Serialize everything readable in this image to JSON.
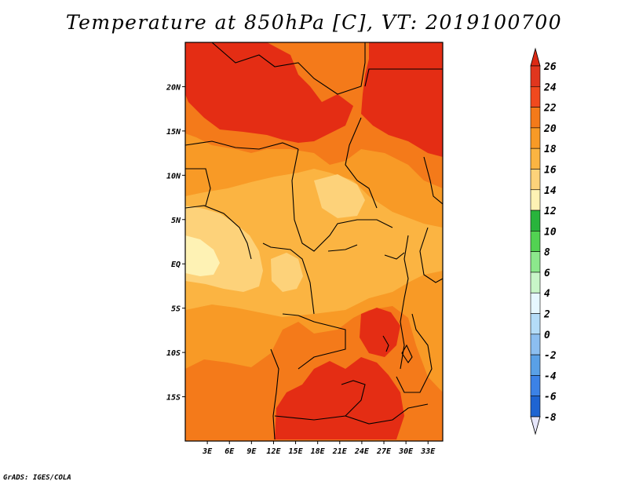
{
  "title": "Temperature at 850hPa [C], VT: 2019100700",
  "footer": "GrADS: IGES/COLA",
  "map": {
    "lon_range": [
      0,
      35
    ],
    "lat_range": [
      -20,
      25
    ],
    "lon_ticks": [
      {
        "lon": 3,
        "label": "3E"
      },
      {
        "lon": 6,
        "label": "6E"
      },
      {
        "lon": 9,
        "label": "9E"
      },
      {
        "lon": 12,
        "label": "12E"
      },
      {
        "lon": 15,
        "label": "15E"
      },
      {
        "lon": 18,
        "label": "18E"
      },
      {
        "lon": 21,
        "label": "21E"
      },
      {
        "lon": 24,
        "label": "24E"
      },
      {
        "lon": 27,
        "label": "27E"
      },
      {
        "lon": 30,
        "label": "30E"
      },
      {
        "lon": 33,
        "label": "33E"
      }
    ],
    "lat_ticks": [
      {
        "lat": 20,
        "label": "20N"
      },
      {
        "lat": 15,
        "label": "15N"
      },
      {
        "lat": 10,
        "label": "10N"
      },
      {
        "lat": 5,
        "label": "5N"
      },
      {
        "lat": 0,
        "label": "EQ"
      },
      {
        "lat": -5,
        "label": "5S"
      },
      {
        "lat": -10,
        "label": "10S"
      },
      {
        "lat": -15,
        "label": "15S"
      }
    ]
  },
  "colorbar": {
    "levels": [
      {
        "value": 26,
        "label": "26",
        "color": "#e0361e"
      },
      {
        "value": 24,
        "label": "24",
        "color": "#f0491e"
      },
      {
        "value": 22,
        "label": "22",
        "color": "#f47a1a"
      },
      {
        "value": 20,
        "label": "20",
        "color": "#f89a26"
      },
      {
        "value": 18,
        "label": "18",
        "color": "#fbb442"
      },
      {
        "value": 16,
        "label": "16",
        "color": "#fdd27a"
      },
      {
        "value": 14,
        "label": "14",
        "color": "#fef2b4"
      },
      {
        "value": 12,
        "label": "12",
        "color": "#28b43c"
      },
      {
        "value": 10,
        "label": "10",
        "color": "#52d252"
      },
      {
        "value": 8,
        "label": "8",
        "color": "#8ce88c"
      },
      {
        "value": 6,
        "label": "6",
        "color": "#c8f5c8"
      },
      {
        "value": 4,
        "label": "4",
        "color": "#e6f7ff"
      },
      {
        "value": 2,
        "label": "2",
        "color": "#b4dcf8"
      },
      {
        "value": 0,
        "label": "0",
        "color": "#8cbef0"
      },
      {
        "value": -2,
        "label": "-2",
        "color": "#5aa0e6"
      },
      {
        "value": -4,
        "label": "-4",
        "color": "#3c82e6"
      },
      {
        "value": -6,
        "label": "-6",
        "color": "#1e64d2"
      },
      {
        "value": -8,
        "label": "-8",
        "color": "#1446b4"
      }
    ],
    "top_color": "#dc2a14",
    "bottom_color": "#0a147c",
    "bottom_arrow_color": "#e6e6fa"
  },
  "fields": {
    "base": "#fbb442",
    "regions": [
      {
        "name": "north-west-hot",
        "level": 24,
        "color": "#e42d14"
      },
      {
        "name": "north-east-hot",
        "level": 24,
        "color": "#e42d14"
      },
      {
        "name": "south-central-hot",
        "level": 24,
        "color": "#e42d14"
      },
      {
        "name": "west-coast-cool",
        "level": 16,
        "color": "#fdd27a"
      },
      {
        "name": "east-lakes-warm",
        "level": 22,
        "color": "#f47a1a"
      }
    ]
  }
}
